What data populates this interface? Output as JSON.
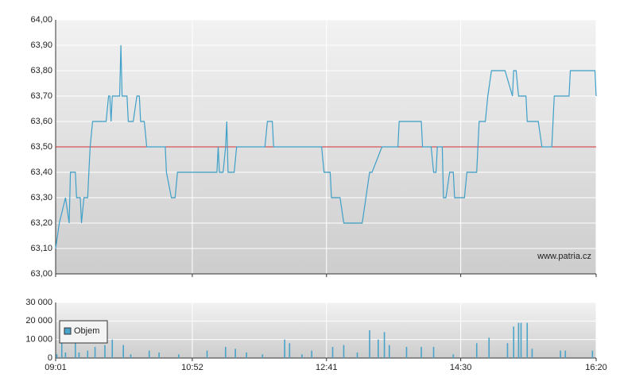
{
  "chart_data": [
    {
      "type": "line",
      "color": "#3ea0c8",
      "reference_line": 63.5,
      "reference_color": "#d03030",
      "watermark": "www.patria.cz",
      "grid": true,
      "x": [
        541,
        544,
        549,
        552,
        553,
        557,
        558,
        561,
        562,
        564,
        567,
        568,
        569,
        571,
        582,
        584,
        585,
        586,
        587,
        593,
        594,
        595,
        599,
        600,
        604,
        607,
        609,
        610,
        613,
        615,
        630,
        631,
        635,
        638,
        640,
        672,
        673,
        674,
        677,
        679,
        680,
        681,
        686,
        688,
        711,
        713,
        717,
        718,
        757,
        759,
        764,
        765,
        772,
        775,
        790,
        796,
        798,
        806,
        819,
        820,
        838,
        839,
        846,
        848,
        850,
        851,
        855,
        856,
        858,
        861,
        864,
        865,
        873,
        875,
        883,
        885,
        890,
        892,
        895,
        906,
        912,
        913,
        915,
        917,
        923,
        924,
        933,
        936,
        944,
        946,
        958,
        959,
        979,
        980
      ],
      "values": [
        63.1,
        63.2,
        63.3,
        63.2,
        63.4,
        63.4,
        63.3,
        63.3,
        63.2,
        63.3,
        63.3,
        63.4,
        63.5,
        63.6,
        63.6,
        63.7,
        63.7,
        63.6,
        63.7,
        63.7,
        63.9,
        63.7,
        63.7,
        63.6,
        63.6,
        63.7,
        63.7,
        63.6,
        63.6,
        63.5,
        63.5,
        63.4,
        63.3,
        63.3,
        63.4,
        63.4,
        63.5,
        63.4,
        63.4,
        63.5,
        63.6,
        63.4,
        63.4,
        63.5,
        63.5,
        63.6,
        63.6,
        63.5,
        63.5,
        63.4,
        63.4,
        63.3,
        63.3,
        63.2,
        63.2,
        63.4,
        63.4,
        63.5,
        63.5,
        63.6,
        63.6,
        63.5,
        63.5,
        63.4,
        63.4,
        63.5,
        63.5,
        63.3,
        63.3,
        63.4,
        63.4,
        63.3,
        63.3,
        63.4,
        63.4,
        63.6,
        63.6,
        63.7,
        63.8,
        63.8,
        63.7,
        63.8,
        63.8,
        63.7,
        63.7,
        63.6,
        63.6,
        63.5,
        63.5,
        63.7,
        63.7,
        63.8,
        63.8,
        63.7
      ],
      "xlim": [
        541,
        980
      ],
      "xticks": [
        541,
        652,
        761,
        870,
        980
      ],
      "ylim": [
        63.0,
        64.0
      ],
      "yticks": [
        {
          "value": 63.0,
          "label": "63,00"
        },
        {
          "value": 63.1,
          "label": "63,10"
        },
        {
          "value": 63.2,
          "label": "63,20"
        },
        {
          "value": 63.3,
          "label": "63,30"
        },
        {
          "value": 63.4,
          "label": "63,40"
        },
        {
          "value": 63.5,
          "label": "63,50"
        },
        {
          "value": 63.6,
          "label": "63,60"
        },
        {
          "value": 63.7,
          "label": "63,70"
        },
        {
          "value": 63.8,
          "label": "63,80"
        },
        {
          "value": 63.9,
          "label": "63,90"
        },
        {
          "value": 64.0,
          "label": "64,00"
        }
      ]
    },
    {
      "type": "bar",
      "legend": "upper left",
      "grid": true,
      "x": [
        542,
        546,
        549,
        557,
        560,
        567,
        573,
        581,
        587,
        596,
        602,
        617,
        625,
        641,
        664,
        679,
        687,
        696,
        709,
        727,
        731,
        741,
        749,
        766,
        775,
        786,
        796,
        803,
        808,
        812,
        826,
        838,
        848,
        864,
        883,
        893,
        908,
        913,
        917,
        919,
        924,
        928,
        951,
        955,
        977
      ],
      "series": [
        {
          "name": "Objem",
          "color": "#4aa3c8",
          "values": [
            2000,
            8000,
            3000,
            13000,
            3000,
            4000,
            6000,
            7000,
            10000,
            7000,
            2000,
            4000,
            3000,
            2000,
            4000,
            6000,
            5000,
            3000,
            2000,
            10000,
            8000,
            2000,
            4000,
            6000,
            7000,
            3000,
            15000,
            10000,
            14000,
            7000,
            6000,
            6000,
            6000,
            2000,
            8000,
            11000,
            8000,
            17000,
            19000,
            19000,
            19000,
            5000,
            4000,
            4000,
            4000
          ]
        }
      ],
      "xlim": [
        541,
        980
      ],
      "xticks": [
        {
          "value": 541,
          "label": "09:01"
        },
        {
          "value": 652,
          "label": "10:52"
        },
        {
          "value": 761,
          "label": "12:41"
        },
        {
          "value": 870,
          "label": "14:30"
        },
        {
          "value": 980,
          "label": "16:20"
        }
      ],
      "ylim": [
        0,
        30000
      ],
      "yticks": [
        0,
        {
          "value": 10000,
          "label": "10 000"
        },
        {
          "value": 20000,
          "label": "20 000"
        },
        {
          "value": 30000,
          "label": "30 000"
        }
      ]
    }
  ]
}
